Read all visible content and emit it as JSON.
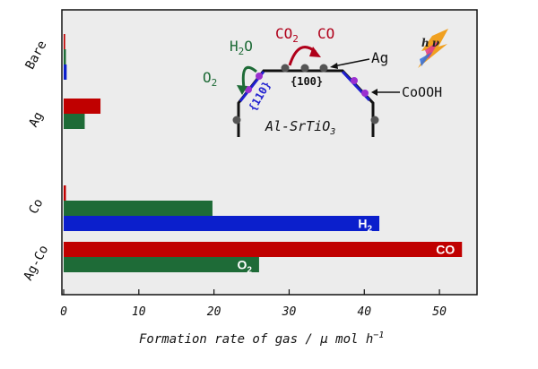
{
  "chart_data": {
    "type": "bar",
    "orientation": "horizontal",
    "categories": [
      "Bare",
      "Ag",
      "Co",
      "Ag-Co"
    ],
    "series": [
      {
        "name": "CO",
        "color": "#c00000",
        "values": [
          0.2,
          4.9,
          0.3,
          53.0
        ]
      },
      {
        "name": "O2",
        "color": "#1e6b37",
        "values": [
          0.3,
          2.8,
          19.8,
          26.0
        ]
      },
      {
        "name": "H2",
        "color": "#0b1fcc",
        "values": [
          0.4,
          0.0,
          42.0,
          0.0
        ]
      }
    ],
    "bar_labels": [
      {
        "category": "Co",
        "series": "H2",
        "text": "H",
        "sub": "2"
      },
      {
        "category": "Ag-Co",
        "series": "CO",
        "text": "CO",
        "sub": ""
      },
      {
        "category": "Ag-Co",
        "series": "O2",
        "text": "O",
        "sub": "2"
      }
    ],
    "xlim": [
      0,
      55
    ],
    "xticks": [
      "0",
      "10",
      "20",
      "30",
      "40",
      "50"
    ],
    "xlabel": "Formation rate of gas /  μ mol h",
    "xlabel_sup": "−1",
    "title": "",
    "ylabel": "",
    "background": "#ececec",
    "grid": false
  },
  "inset": {
    "h2o": "H",
    "h2o_sub": "2",
    "h2o_end": "O",
    "o2": "O",
    "o2_sub": "2",
    "co2": "CO",
    "co2_sub": "2",
    "co": "CO",
    "ag": "Ag",
    "facet_100": "{100}",
    "facet_110": "{110}",
    "cocat": "CoOOH",
    "support": "Al-SrTiO",
    "support_sub": "3",
    "hv_h": "h",
    "hv_v": "ν"
  }
}
